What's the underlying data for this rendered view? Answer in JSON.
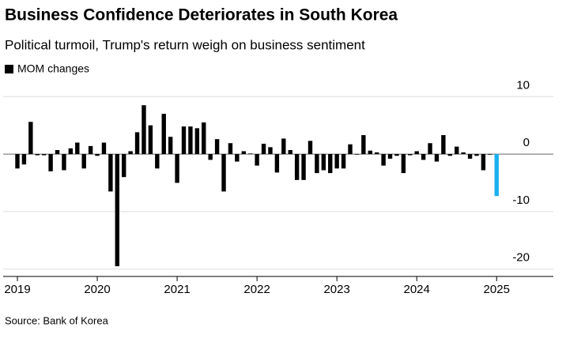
{
  "chart_data": {
    "type": "bar",
    "title": "Business Confidence Deteriorates in South Korea",
    "subtitle": "Political turmoil, Trump's return weigh on business sentiment",
    "legend": "MOM changes",
    "source": "Source: Bank of Korea",
    "categories": [
      "2019",
      null,
      null,
      null,
      null,
      null,
      null,
      null,
      null,
      null,
      null,
      null,
      "2020",
      null,
      null,
      null,
      null,
      null,
      null,
      null,
      null,
      null,
      null,
      null,
      "2021",
      null,
      null,
      null,
      null,
      null,
      null,
      null,
      null,
      null,
      null,
      null,
      "2022",
      null,
      null,
      null,
      null,
      null,
      null,
      null,
      null,
      null,
      null,
      null,
      "2023",
      null,
      null,
      null,
      null,
      null,
      null,
      null,
      null,
      null,
      null,
      null,
      "2024",
      null,
      null,
      null,
      null,
      null,
      null,
      null,
      null,
      null,
      null,
      null,
      "2025"
    ],
    "values": [
      -2.5,
      -1.8,
      5.6,
      -0.2,
      -0.2,
      -3,
      0.7,
      -2.8,
      1,
      2,
      -2.5,
      1.4,
      -0.3,
      2,
      -6.5,
      -19.5,
      -4,
      0.5,
      3.8,
      8.5,
      5,
      -2.5,
      7,
      3,
      -5,
      4.8,
      4.8,
      4.5,
      5.5,
      -1,
      2.6,
      -6.5,
      1.9,
      -1.3,
      0.5,
      0.1,
      -2,
      1.8,
      1.2,
      -3.2,
      2.7,
      0.7,
      -4.5,
      -4.5,
      2.3,
      -3.3,
      -2.8,
      -3.3,
      -2.5,
      -2.5,
      1.7,
      -0.1,
      3.3,
      0.6,
      0.3,
      -2,
      -0.8,
      -0.3,
      -3.3,
      -0.2,
      0.5,
      -1,
      1.9,
      -1.3,
      3.3,
      -0.3,
      1.3,
      0.3,
      -0.8,
      -0.3,
      -2.8,
      -0.1,
      -7.3
    ],
    "colors": [
      "#000000",
      "#000000",
      "#000000",
      "#000000",
      "#000000",
      "#000000",
      "#000000",
      "#000000",
      "#000000",
      "#000000",
      "#000000",
      "#000000",
      "#000000",
      "#000000",
      "#000000",
      "#000000",
      "#000000",
      "#000000",
      "#000000",
      "#000000",
      "#000000",
      "#000000",
      "#000000",
      "#000000",
      "#000000",
      "#000000",
      "#000000",
      "#000000",
      "#000000",
      "#000000",
      "#000000",
      "#000000",
      "#000000",
      "#000000",
      "#000000",
      "#000000",
      "#000000",
      "#000000",
      "#000000",
      "#000000",
      "#000000",
      "#000000",
      "#000000",
      "#000000",
      "#000000",
      "#000000",
      "#000000",
      "#000000",
      "#000000",
      "#000000",
      "#000000",
      "#000000",
      "#000000",
      "#000000",
      "#000000",
      "#000000",
      "#000000",
      "#000000",
      "#000000",
      "#000000",
      "#000000",
      "#000000",
      "#000000",
      "#000000",
      "#000000",
      "#000000",
      "#000000",
      "#000000",
      "#000000",
      "#000000",
      "#000000",
      "#000000",
      "#1ab0f0"
    ],
    "ylim": [
      -21,
      11
    ],
    "yticks": [
      10,
      0,
      -10,
      -20
    ],
    "grid": true
  }
}
